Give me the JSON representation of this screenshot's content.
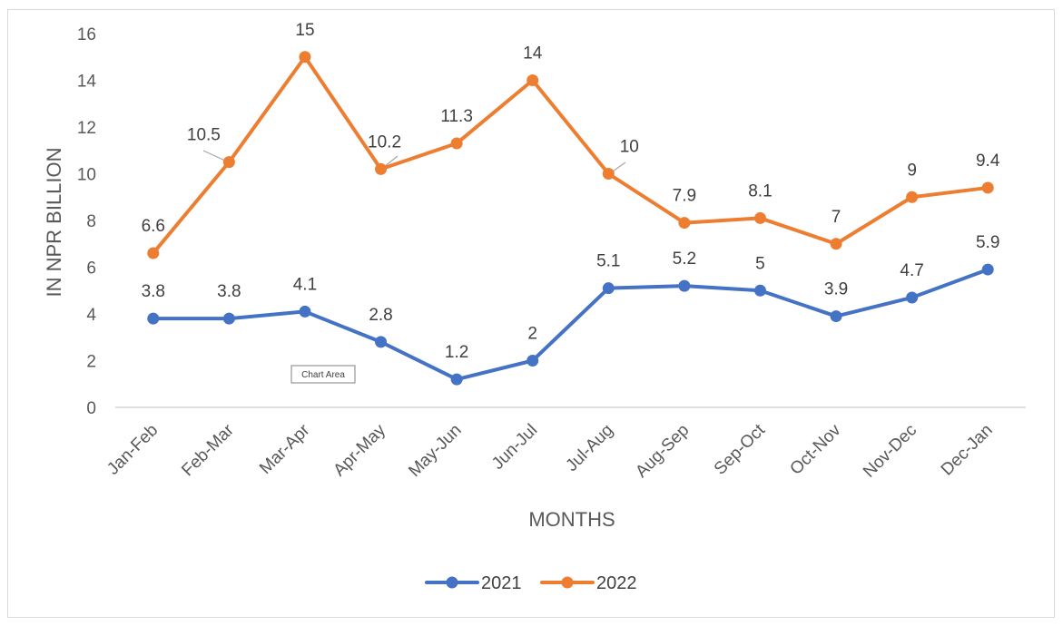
{
  "chart_data": {
    "type": "line",
    "title": "",
    "xlabel": "MONTHS",
    "ylabel": "IN NPR BILLION",
    "categories": [
      "Jan-Feb",
      "Feb-Mar",
      "Mar-Apr",
      "Apr-May",
      "May-Jun",
      "Jun-Jul",
      "Jul-Aug",
      "Aug-Sep",
      "Sep-Oct",
      "Oct-Nov",
      "Nov-Dec",
      "Dec-Jan"
    ],
    "ylim": [
      0,
      16
    ],
    "yticks": [
      0,
      2,
      4,
      6,
      8,
      10,
      12,
      14,
      16
    ],
    "grid": false,
    "legend_position": "bottom",
    "series": [
      {
        "name": "2021",
        "color": "#4472c4",
        "values": [
          3.8,
          3.8,
          4.1,
          2.8,
          1.2,
          2,
          5.1,
          5.2,
          5,
          3.9,
          4.7,
          5.9
        ],
        "labels": [
          "3.8",
          "3.8",
          "4.1",
          "2.8",
          "1.2",
          "2",
          "5.1",
          "5.2",
          "5",
          "3.9",
          "4.7",
          "5.9"
        ]
      },
      {
        "name": "2022",
        "color": "#ed7d31",
        "values": [
          6.6,
          10.5,
          15,
          10.2,
          11.3,
          14,
          10,
          7.9,
          8.1,
          7,
          9,
          9.4
        ],
        "labels": [
          "6.6",
          "10.5",
          "15",
          "10.2",
          "11.3",
          "14",
          "10",
          "7.9",
          "8.1",
          "7",
          "9",
          "9.4"
        ]
      }
    ]
  },
  "tooltip": {
    "text": "Chart Area"
  }
}
